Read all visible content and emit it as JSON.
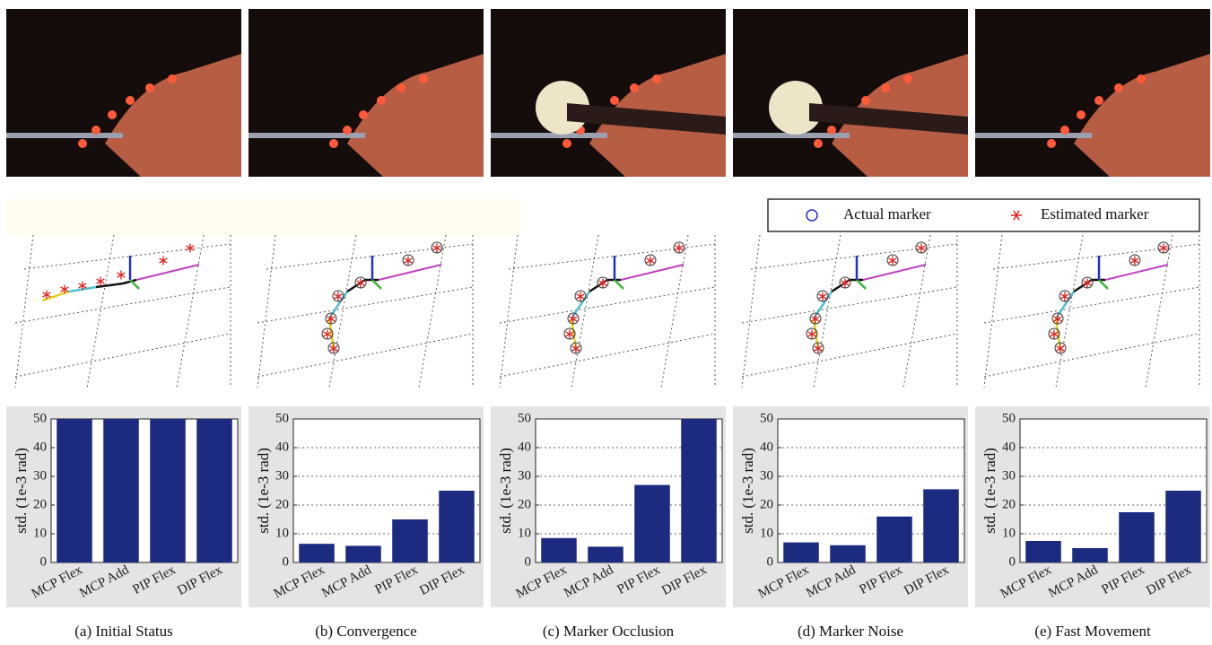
{
  "legend": [
    {
      "name": "Actual marker",
      "color": "#2a2ac0"
    },
    {
      "name": "Estimated marker",
      "color": "#e02020"
    }
  ],
  "chart_data": [
    {
      "type": "bar",
      "caption": "(a) Initial Status",
      "ylabel": "std. (1e-3 rad)",
      "categories": [
        "MCP Flex",
        "MCP Add",
        "PIP Flex",
        "DIP Flex"
      ],
      "values": [
        50,
        50,
        50,
        50
      ],
      "color": "#1c2a80",
      "ylim": [
        0,
        50
      ],
      "yticks": [
        0,
        10,
        20,
        30,
        40,
        50
      ],
      "grid": false
    },
    {
      "type": "bar",
      "caption": "(b) Convergence",
      "ylabel": "std. (1e-3 rad)",
      "categories": [
        "MCP Flex",
        "MCP Add",
        "PIP Flex",
        "DIP Flex"
      ],
      "values": [
        6.5,
        5.8,
        15,
        25
      ],
      "color": "#1c2a80",
      "ylim": [
        0,
        50
      ],
      "yticks": [
        0,
        10,
        20,
        30,
        40,
        50
      ],
      "grid": true
    },
    {
      "type": "bar",
      "caption": "(c) Marker Occlusion",
      "ylabel": "std. (1e-3 rad)",
      "categories": [
        "MCP Flex",
        "MCP Add",
        "PIP Flex",
        "DIP Flex"
      ],
      "values": [
        8.5,
        5.5,
        27,
        50
      ],
      "color": "#1c2a80",
      "ylim": [
        0,
        50
      ],
      "yticks": [
        0,
        10,
        20,
        30,
        40,
        50
      ],
      "grid": true
    },
    {
      "type": "bar",
      "caption": "(d) Marker Noise",
      "ylabel": "std. (1e-3 rad)",
      "categories": [
        "MCP Flex",
        "MCP Add",
        "PIP Flex",
        "DIP Flex"
      ],
      "values": [
        7,
        6,
        16,
        25.5
      ],
      "color": "#1c2a80",
      "ylim": [
        0,
        50
      ],
      "yticks": [
        0,
        10,
        20,
        30,
        40,
        50
      ],
      "grid": true
    },
    {
      "type": "bar",
      "caption": "(e) Fast Movement",
      "ylabel": "std. (1e-3 rad)",
      "categories": [
        "MCP Flex",
        "MCP Add",
        "PIP Flex",
        "DIP Flex"
      ],
      "values": [
        7.5,
        5,
        17.5,
        25
      ],
      "color": "#1c2a80",
      "ylim": [
        0,
        50
      ],
      "yticks": [
        0,
        10,
        20,
        30,
        40,
        50
      ],
      "grid": true
    }
  ]
}
